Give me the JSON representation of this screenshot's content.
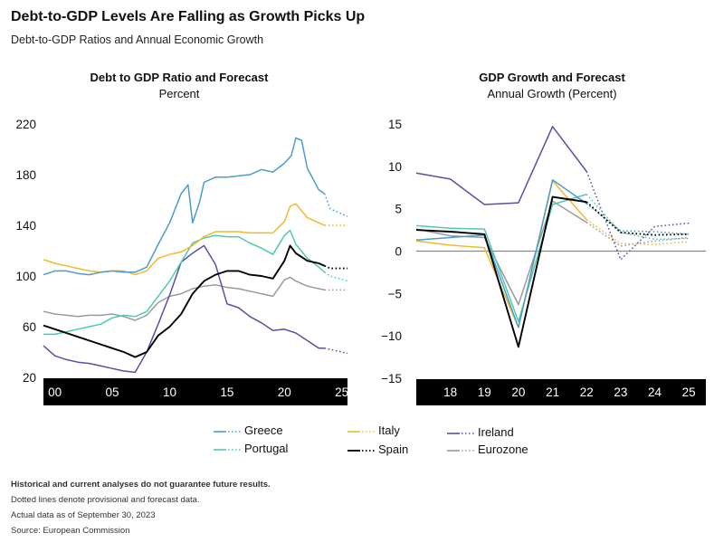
{
  "header": {
    "title": "Debt-to-GDP Levels Are Falling as Growth Picks Up",
    "subtitle": "Debt-to-GDP Ratios and Annual Economic Growth"
  },
  "colors": {
    "greece": "#4a9ccc",
    "italy": "#f0b92a",
    "ireland": "#5b4fa3",
    "portugal": "#4ec9b5",
    "spain": "#000000",
    "eurozone": "#9a9a9a"
  },
  "legend": [
    {
      "key": "greece",
      "label": "Greece"
    },
    {
      "key": "italy",
      "label": "Italy"
    },
    {
      "key": "ireland",
      "label": "Ireland"
    },
    {
      "key": "portugal",
      "label": "Portugal"
    },
    {
      "key": "spain",
      "label": "Spain"
    },
    {
      "key": "eurozone",
      "label": "Eurozone"
    }
  ],
  "footnotes": {
    "disclaimer": "Historical and current analyses do not guarantee future results.",
    "note": "Dotted lines denote provisional and forecast data.",
    "asof": "Actual data as of September 30, 2023",
    "source": "Source: European Commission"
  },
  "chart_data": [
    {
      "type": "line",
      "title": "Debt to GDP Ratio and Forecast",
      "subtitle": "Percent",
      "ylim": [
        20,
        220
      ],
      "yticks": [
        20,
        60,
        100,
        140,
        180,
        220
      ],
      "xlim": [
        1999,
        2025.5
      ],
      "xticks": [
        2000,
        2005,
        2010,
        2015,
        2020,
        2025
      ],
      "xtick_labels": [
        "00",
        "05",
        "10",
        "15",
        "20",
        "25"
      ],
      "forecast_start": 2023.5,
      "series": [
        {
          "key": "greece",
          "name": "Greece",
          "points": [
            [
              1999,
              101
            ],
            [
              2000,
              104
            ],
            [
              2001,
              104
            ],
            [
              2002,
              102
            ],
            [
              2003,
              101
            ],
            [
              2004,
              103
            ],
            [
              2005,
              104
            ],
            [
              2006,
              103
            ],
            [
              2007,
              103
            ],
            [
              2008,
              107
            ],
            [
              2009,
              125
            ],
            [
              2010,
              142
            ],
            [
              2011,
              165
            ],
            [
              2011.6,
              172
            ],
            [
              2012,
              142
            ],
            [
              2012.6,
              158
            ],
            [
              2013,
              174
            ],
            [
              2014,
              178
            ],
            [
              2015,
              178
            ],
            [
              2016,
              179
            ],
            [
              2017,
              180
            ],
            [
              2018,
              184
            ],
            [
              2019,
              182
            ],
            [
              2020,
              189
            ],
            [
              2020.6,
              195
            ],
            [
              2021,
              209
            ],
            [
              2021.5,
              207
            ],
            [
              2022,
              185
            ],
            [
              2023,
              168
            ],
            [
              2023.5,
              165
            ],
            [
              2024,
              153
            ],
            [
              2025.5,
              147
            ]
          ]
        },
        {
          "key": "italy",
          "name": "Italy",
          "points": [
            [
              1999,
              113
            ],
            [
              2000,
              110
            ],
            [
              2001,
              108
            ],
            [
              2002,
              106
            ],
            [
              2003,
              104
            ],
            [
              2004,
              103
            ],
            [
              2005,
              104
            ],
            [
              2006,
              104
            ],
            [
              2007,
              101
            ],
            [
              2008,
              104
            ],
            [
              2009,
              114
            ],
            [
              2010,
              117
            ],
            [
              2011,
              119
            ],
            [
              2012,
              124
            ],
            [
              2013,
              131
            ],
            [
              2014,
              135
            ],
            [
              2015,
              135
            ],
            [
              2016,
              135
            ],
            [
              2017,
              134
            ],
            [
              2018,
              134
            ],
            [
              2019,
              134
            ],
            [
              2020,
              143
            ],
            [
              2020.5,
              155
            ],
            [
              2021,
              157
            ],
            [
              2022,
              146
            ],
            [
              2023,
              142
            ],
            [
              2023.5,
              140
            ],
            [
              2024,
              140
            ],
            [
              2025.5,
              140
            ]
          ]
        },
        {
          "key": "ireland",
          "name": "Ireland",
          "points": [
            [
              1999,
              45
            ],
            [
              2000,
              37
            ],
            [
              2001,
              34
            ],
            [
              2002,
              32
            ],
            [
              2003,
              31
            ],
            [
              2004,
              29
            ],
            [
              2005,
              27
            ],
            [
              2006,
              25
            ],
            [
              2007,
              24
            ],
            [
              2008,
              40
            ],
            [
              2009,
              62
            ],
            [
              2010,
              85
            ],
            [
              2011,
              111
            ],
            [
              2012,
              118
            ],
            [
              2013,
              124
            ],
            [
              2014,
              109
            ],
            [
              2015,
              78
            ],
            [
              2016,
              75
            ],
            [
              2017,
              68
            ],
            [
              2018,
              63
            ],
            [
              2019,
              57
            ],
            [
              2020,
              58
            ],
            [
              2021,
              55
            ],
            [
              2022,
              49
            ],
            [
              2023,
              43
            ],
            [
              2023.5,
              43
            ],
            [
              2024,
              42
            ],
            [
              2025.5,
              39
            ]
          ]
        },
        {
          "key": "portugal",
          "name": "Portugal",
          "points": [
            [
              1999,
              54
            ],
            [
              2000,
              54
            ],
            [
              2001,
              56
            ],
            [
              2002,
              58
            ],
            [
              2003,
              60
            ],
            [
              2004,
              62
            ],
            [
              2005,
              67
            ],
            [
              2006,
              69
            ],
            [
              2007,
              68
            ],
            [
              2008,
              72
            ],
            [
              2009,
              84
            ],
            [
              2010,
              96
            ],
            [
              2011,
              111
            ],
            [
              2012,
              126
            ],
            [
              2013,
              130
            ],
            [
              2014,
              132
            ],
            [
              2015,
              131
            ],
            [
              2016,
              131
            ],
            [
              2017,
              126
            ],
            [
              2018,
              122
            ],
            [
              2019,
              117
            ],
            [
              2020,
              132
            ],
            [
              2020.5,
              136
            ],
            [
              2021,
              125
            ],
            [
              2022,
              114
            ],
            [
              2023,
              107
            ],
            [
              2023.5,
              103
            ],
            [
              2024,
              100
            ],
            [
              2025.5,
              96
            ]
          ]
        },
        {
          "key": "spain",
          "name": "Spain",
          "points": [
            [
              1999,
              61
            ],
            [
              2000,
              58
            ],
            [
              2001,
              55
            ],
            [
              2002,
              52
            ],
            [
              2003,
              49
            ],
            [
              2004,
              46
            ],
            [
              2005,
              43
            ],
            [
              2006,
              40
            ],
            [
              2007,
              36
            ],
            [
              2008,
              40
            ],
            [
              2009,
              53
            ],
            [
              2010,
              60
            ],
            [
              2011,
              70
            ],
            [
              2012,
              86
            ],
            [
              2013,
              96
            ],
            [
              2014,
              101
            ],
            [
              2015,
              104
            ],
            [
              2016,
              104
            ],
            [
              2017,
              101
            ],
            [
              2018,
              100
            ],
            [
              2019,
              98
            ],
            [
              2020,
              112
            ],
            [
              2020.5,
              124
            ],
            [
              2021,
              118
            ],
            [
              2022,
              112
            ],
            [
              2023,
              110
            ],
            [
              2023.5,
              108
            ],
            [
              2024,
              106
            ],
            [
              2025.5,
              106
            ]
          ]
        },
        {
          "key": "eurozone",
          "name": "Eurozone",
          "points": [
            [
              1999,
              72
            ],
            [
              2000,
              70
            ],
            [
              2001,
              69
            ],
            [
              2002,
              68
            ],
            [
              2003,
              69
            ],
            [
              2004,
              69
            ],
            [
              2005,
              70
            ],
            [
              2006,
              68
            ],
            [
              2007,
              65
            ],
            [
              2008,
              69
            ],
            [
              2009,
              79
            ],
            [
              2010,
              84
            ],
            [
              2011,
              86
            ],
            [
              2012,
              90
            ],
            [
              2013,
              92
            ],
            [
              2014,
              93
            ],
            [
              2015,
              91
            ],
            [
              2016,
              90
            ],
            [
              2017,
              88
            ],
            [
              2018,
              86
            ],
            [
              2019,
              84
            ],
            [
              2020,
              97
            ],
            [
              2020.5,
              99
            ],
            [
              2021,
              96
            ],
            [
              2022,
              92
            ],
            [
              2023,
              90
            ],
            [
              2023.5,
              89
            ],
            [
              2024,
              89
            ],
            [
              2025.5,
              89
            ]
          ]
        }
      ]
    },
    {
      "type": "line",
      "title": "GDP Growth and Forecast",
      "subtitle": "Annual Growth (Percent)",
      "ylim": [
        -15,
        15
      ],
      "yticks": [
        -15,
        -10,
        -5,
        0,
        5,
        10,
        15
      ],
      "ytick_labels": [
        "−15",
        "−10",
        "−5",
        "0",
        "5",
        "10",
        "15"
      ],
      "xlim": [
        2017,
        2025.5
      ],
      "xticks": [
        2018,
        2019,
        2020,
        2021,
        2022,
        2023,
        2024,
        2025
      ],
      "xtick_labels": [
        "18",
        "19",
        "20",
        "21",
        "22",
        "23",
        "24",
        "25"
      ],
      "forecast_start": 2022,
      "series": [
        {
          "key": "greece",
          "name": "Greece",
          "actual": [
            [
              2017,
              1.3
            ],
            [
              2018,
              1.6
            ],
            [
              2019,
              1.9
            ],
            [
              2020,
              -9.0
            ],
            [
              2021,
              8.4
            ],
            [
              2022,
              5.6
            ]
          ],
          "forecast": [
            [
              2022,
              5.6
            ],
            [
              2023,
              2.4
            ],
            [
              2024,
              2.3
            ],
            [
              2025,
              2.0
            ]
          ]
        },
        {
          "key": "italy",
          "name": "Italy",
          "actual": [
            [
              2017,
              1.2
            ],
            [
              2018,
              0.7
            ],
            [
              2019,
              0.4
            ],
            [
              2020,
              -9.0
            ],
            [
              2021,
              8.3
            ],
            [
              2022,
              3.7
            ]
          ],
          "forecast": [
            [
              2022,
              3.7
            ],
            [
              2023,
              0.9
            ],
            [
              2024,
              0.8
            ],
            [
              2025,
              1.1
            ]
          ]
        },
        {
          "key": "ireland",
          "name": "Ireland",
          "actual": [
            [
              2017,
              9.2
            ],
            [
              2018,
              8.5
            ],
            [
              2019,
              5.5
            ],
            [
              2020,
              5.7
            ],
            [
              2021,
              14.7
            ],
            [
              2022,
              9.4
            ]
          ],
          "forecast": [
            [
              2022,
              9.4
            ],
            [
              2023,
              -1.0
            ],
            [
              2024,
              2.9
            ],
            [
              2025,
              3.3
            ]
          ]
        },
        {
          "key": "portugal",
          "name": "Portugal",
          "actual": [
            [
              2017,
              3.0
            ],
            [
              2018,
              2.7
            ],
            [
              2019,
              2.6
            ],
            [
              2020,
              -8.3
            ],
            [
              2021,
              5.5
            ],
            [
              2022,
              6.7
            ]
          ],
          "forecast": [
            [
              2022,
              6.7
            ],
            [
              2023,
              2.2
            ],
            [
              2024,
              1.4
            ],
            [
              2025,
              1.5
            ]
          ]
        },
        {
          "key": "spain",
          "name": "Spain",
          "actual": [
            [
              2017,
              2.5
            ],
            [
              2018,
              2.3
            ],
            [
              2019,
              2.0
            ],
            [
              2020,
              -11.3
            ],
            [
              2021,
              6.4
            ],
            [
              2022,
              5.8
            ]
          ],
          "forecast": [
            [
              2022,
              5.8
            ],
            [
              2023,
              2.2
            ],
            [
              2024,
              1.9
            ],
            [
              2025,
              2.0
            ]
          ]
        },
        {
          "key": "eurozone",
          "name": "Eurozone",
          "actual": [
            [
              2017,
              2.6
            ],
            [
              2018,
              1.8
            ],
            [
              2019,
              1.6
            ],
            [
              2020,
              -6.3
            ],
            [
              2021,
              5.9
            ],
            [
              2022,
              3.4
            ]
          ],
          "forecast": [
            [
              2022,
              3.4
            ],
            [
              2023,
              0.6
            ],
            [
              2024,
              1.2
            ],
            [
              2025,
              1.6
            ]
          ]
        }
      ]
    }
  ]
}
